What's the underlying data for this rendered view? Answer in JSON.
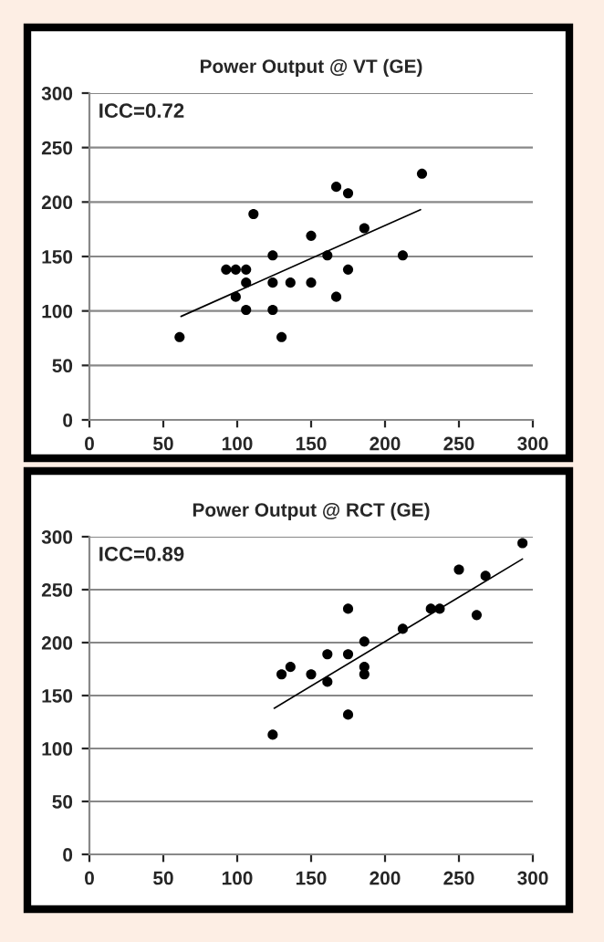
{
  "chart_data": [
    {
      "type": "scatter",
      "title": "Power Output @ VT (GE)",
      "annotations": [
        "ICC=0.72"
      ],
      "xlim": [
        0,
        300
      ],
      "xticks": [
        0,
        50,
        100,
        150,
        200,
        250,
        300
      ],
      "ylim": [
        0,
        300
      ],
      "yticks": [
        0,
        50,
        100,
        150,
        200,
        250,
        300
      ],
      "grid": "y",
      "series": [
        {
          "type": "scatter",
          "marker": "circle",
          "color": "#000000",
          "x": [
            61,
            92.5,
            99,
            106,
            106,
            99,
            106,
            111,
            124,
            124,
            124,
            130,
            136,
            150,
            150,
            161,
            167,
            175,
            167,
            175,
            186,
            212,
            225
          ],
          "values": [
            76,
            138,
            138,
            138,
            126,
            113,
            101,
            189,
            151,
            126,
            101,
            76,
            126,
            169,
            126,
            151,
            214,
            208,
            113,
            138,
            176,
            151,
            226
          ]
        },
        {
          "type": "line",
          "color": "#000000",
          "x": [
            62,
            224
          ],
          "values": [
            95,
            193
          ]
        }
      ]
    },
    {
      "type": "scatter",
      "title": "Power Output @ RCT (GE)",
      "annotations": [
        "ICC=0.89"
      ],
      "xlim": [
        0,
        300
      ],
      "xticks": [
        0,
        50,
        100,
        150,
        200,
        250,
        300
      ],
      "ylim": [
        0,
        300
      ],
      "yticks": [
        0,
        50,
        100,
        150,
        200,
        250,
        300
      ],
      "grid": "y",
      "series": [
        {
          "type": "scatter",
          "marker": "circle",
          "color": "#000000",
          "x": [
            124,
            130,
            136,
            150,
            161,
            161,
            175,
            175,
            175,
            186,
            186,
            186,
            212,
            231,
            237,
            250,
            262,
            268,
            293
          ],
          "values": [
            113,
            170,
            177,
            170,
            189,
            163,
            232,
            189,
            132,
            201,
            177,
            170,
            213,
            232,
            232,
            269,
            226,
            263,
            294
          ]
        },
        {
          "type": "line",
          "color": "#000000",
          "x": [
            125,
            293
          ],
          "values": [
            138,
            279
          ]
        }
      ]
    }
  ]
}
